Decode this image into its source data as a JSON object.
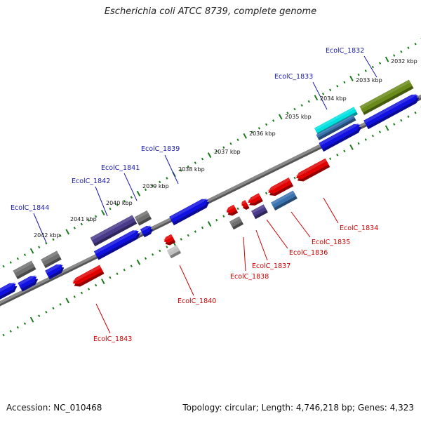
{
  "title": "Escherichia coli ATCC 8739, complete genome",
  "footer": {
    "accession": "Accession: NC_010468",
    "summary": "Topology: circular; Length: 4,746,218 bp; Genes: 4,323"
  },
  "colors": {
    "forward_label": "#1a1aaa",
    "reverse_label": "#cc0000",
    "tick": "#1a7a1a",
    "backbone": "#8a8a8a",
    "blue": "#1010e0",
    "red": "#e00000",
    "purple": "#4a3a8a",
    "gray": "#707070",
    "cyan": "#00e0e0",
    "olive": "#6a8a1a",
    "steel": "#3a72b0",
    "lightgray": "#c0c0c0"
  },
  "ticks": [
    {
      "label": "2032 kbp"
    },
    {
      "label": "2033 kbp"
    },
    {
      "label": "2034 kbp"
    },
    {
      "label": "2035 kbp"
    },
    {
      "label": "2036 kbp"
    },
    {
      "label": "2037 kbp"
    },
    {
      "label": "2038 kbp"
    },
    {
      "label": "2039 kbp"
    },
    {
      "label": "2040 kbp"
    },
    {
      "label": "2041 kbp"
    },
    {
      "label": "2042 kbp"
    }
  ],
  "gene_labels": [
    {
      "text": "EcolC_1832",
      "strand": "forward"
    },
    {
      "text": "EcolC_1833",
      "strand": "forward"
    },
    {
      "text": "EcolC_1839",
      "strand": "forward"
    },
    {
      "text": "EcolC_1841",
      "strand": "forward"
    },
    {
      "text": "EcolC_1842",
      "strand": "forward"
    },
    {
      "text": "EcolC_1844",
      "strand": "forward"
    },
    {
      "text": "EcolC_1834",
      "strand": "reverse"
    },
    {
      "text": "EcolC_1835",
      "strand": "reverse"
    },
    {
      "text": "EcolC_1836",
      "strand": "reverse"
    },
    {
      "text": "EcolC_1837",
      "strand": "reverse"
    },
    {
      "text": "EcolC_1838",
      "strand": "reverse"
    },
    {
      "text": "EcolC_1840",
      "strand": "reverse"
    },
    {
      "text": "EcolC_1843",
      "strand": "reverse"
    }
  ],
  "features": [
    {
      "name": "olive-top",
      "color": "olive"
    },
    {
      "name": "blue-top-right",
      "color": "blue"
    },
    {
      "name": "cyan",
      "color": "cyan"
    },
    {
      "name": "steel-small",
      "color": "steel"
    },
    {
      "name": "blue-mid",
      "color": "blue"
    },
    {
      "name": "blue-center",
      "color": "blue"
    },
    {
      "name": "purple-long",
      "color": "purple"
    },
    {
      "name": "blue-left",
      "color": "blue"
    },
    {
      "name": "gray-small-a",
      "color": "gray"
    },
    {
      "name": "blue-small-a",
      "color": "blue"
    },
    {
      "name": "gray-left-a",
      "color": "gray"
    },
    {
      "name": "gray-left-b",
      "color": "gray"
    },
    {
      "name": "blue-left-b",
      "color": "blue"
    },
    {
      "name": "blue-left-c",
      "color": "blue"
    },
    {
      "name": "blue-edge-right",
      "color": "blue"
    },
    {
      "name": "red-1834",
      "color": "red"
    },
    {
      "name": "red-1835",
      "color": "red"
    },
    {
      "name": "steel-1836",
      "color": "steel"
    },
    {
      "name": "purple-1836",
      "color": "purple"
    },
    {
      "name": "red-1837",
      "color": "red"
    },
    {
      "name": "red-1837b",
      "color": "red"
    },
    {
      "name": "red-1838",
      "color": "red"
    },
    {
      "name": "gray-1838",
      "color": "gray"
    },
    {
      "name": "red-1840",
      "color": "red"
    },
    {
      "name": "lightgray-1840",
      "color": "lightgray"
    },
    {
      "name": "red-1843",
      "color": "red"
    }
  ]
}
